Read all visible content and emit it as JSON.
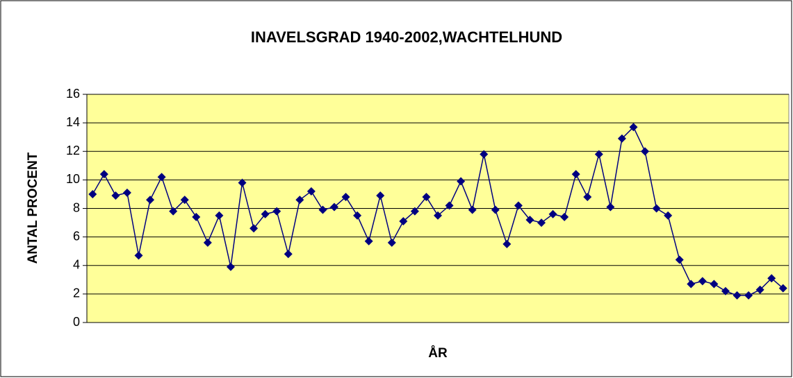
{
  "chart_data": {
    "type": "line",
    "title": "INAVELSGRAD 1940-2002,WACHTELHUND",
    "x_label": "ÅR",
    "y_label": "ANTAL PROCENT",
    "series": [
      {
        "name": null,
        "color": "#000080",
        "values": [
          9.0,
          10.4,
          8.9,
          9.1,
          4.7,
          8.6,
          10.2,
          7.8,
          8.6,
          7.4,
          5.6,
          7.5,
          3.9,
          9.8,
          6.6,
          7.6,
          7.8,
          4.8,
          8.6,
          9.2,
          7.9,
          8.1,
          8.8,
          7.5,
          5.7,
          8.9,
          5.6,
          7.1,
          7.8,
          8.8,
          7.5,
          8.2,
          9.9,
          7.9,
          11.8,
          7.9,
          5.5,
          8.2,
          7.2,
          7.0,
          7.6,
          7.4,
          10.4,
          8.8,
          11.8,
          8.1,
          12.9,
          13.7,
          12.0,
          8.0,
          7.5,
          4.4,
          2.7,
          2.9,
          2.7,
          2.2,
          1.9,
          1.9,
          2.3,
          3.1,
          2.4
        ]
      }
    ],
    "ylim": [
      0,
      16
    ],
    "yticks": [
      0,
      2,
      4,
      6,
      8,
      10,
      12,
      14,
      16
    ],
    "grid": true,
    "plot_background": "#ffff99"
  }
}
